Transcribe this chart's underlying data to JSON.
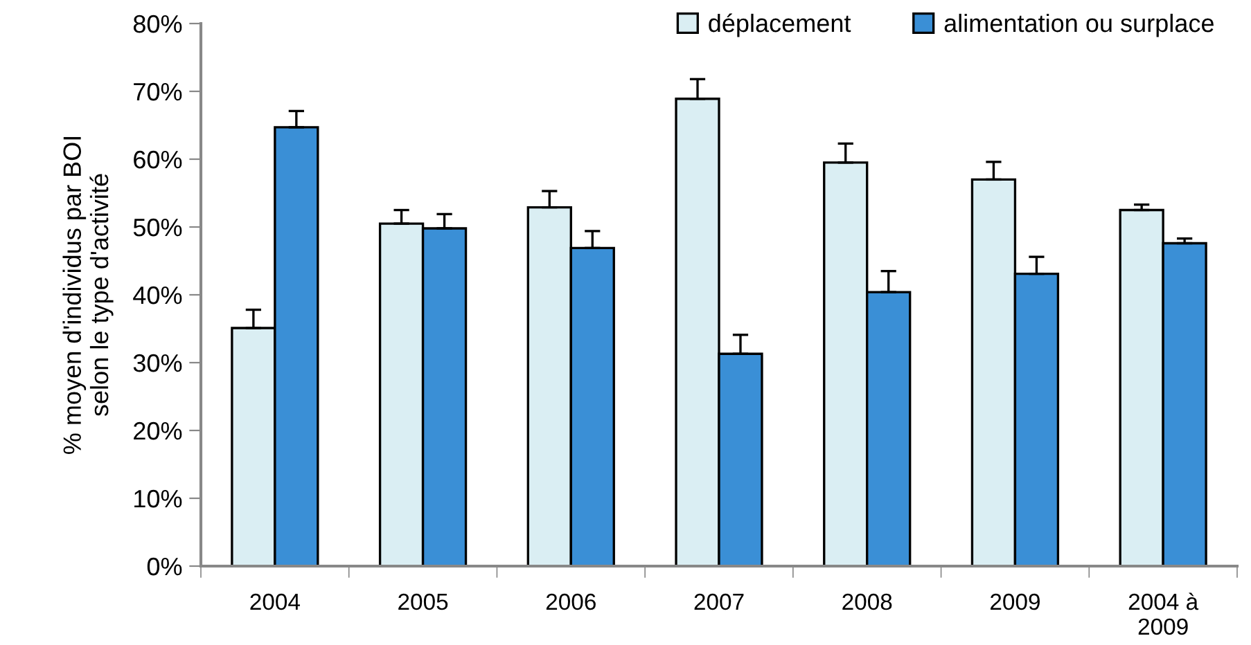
{
  "chart_data": {
    "type": "bar",
    "ylabel": "% moyen d'individus par BOI\nselon le type d'activité",
    "categories": [
      "2004",
      "2005",
      "2006",
      "2007",
      "2008",
      "2009",
      "2004 à\n2009"
    ],
    "series": [
      {
        "name": "déplacement",
        "color": "#daeef3",
        "values": [
          35.1,
          50.5,
          52.9,
          68.9,
          59.5,
          57.0,
          52.5
        ],
        "errors": [
          [
            35.1,
            37.8
          ],
          [
            50.5,
            52.5
          ],
          [
            52.9,
            55.3
          ],
          [
            68.9,
            71.8
          ],
          [
            59.5,
            62.3
          ],
          [
            57.0,
            59.6
          ],
          [
            52.5,
            53.3
          ]
        ]
      },
      {
        "name": "alimentation ou surplace",
        "color": "#3a8fd6",
        "values": [
          64.7,
          49.8,
          46.9,
          31.3,
          40.4,
          43.1,
          47.6
        ],
        "errors": [
          [
            64.7,
            67.1
          ],
          [
            49.8,
            51.9
          ],
          [
            46.9,
            49.4
          ],
          [
            31.3,
            34.1
          ],
          [
            40.4,
            43.5
          ],
          [
            43.1,
            45.6
          ],
          [
            47.6,
            48.3
          ]
        ]
      }
    ],
    "ylim": [
      0,
      80
    ],
    "yticks": [
      {
        "value": 0,
        "label": "0%"
      },
      {
        "value": 10,
        "label": "10%"
      },
      {
        "value": 20,
        "label": "20%"
      },
      {
        "value": 30,
        "label": "30%"
      },
      {
        "value": 40,
        "label": "40%"
      },
      {
        "value": 50,
        "label": "50%"
      },
      {
        "value": 60,
        "label": "60%"
      },
      {
        "value": 70,
        "label": "70%"
      },
      {
        "value": 80,
        "label": "80%"
      }
    ],
    "grid": false,
    "legend": "top right"
  }
}
